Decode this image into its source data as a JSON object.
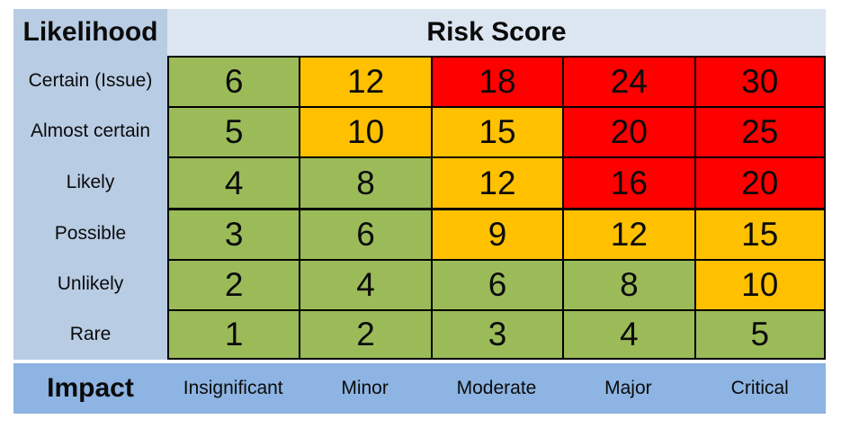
{
  "headers": {
    "likelihood": "Likelihood",
    "risk_score": "Risk Score",
    "impact": "Impact"
  },
  "chart_data": {
    "type": "heatmap",
    "title": "Risk Score",
    "ylabel": "Likelihood",
    "xlabel": "Impact",
    "x_categories": [
      "Insignificant",
      "Minor",
      "Moderate",
      "Major",
      "Critical"
    ],
    "y_categories": [
      "Certain (Issue)",
      "Almost certain",
      "Likely",
      "Possible",
      "Unlikely",
      "Rare"
    ],
    "values": [
      [
        6,
        12,
        18,
        24,
        30
      ],
      [
        5,
        10,
        15,
        20,
        25
      ],
      [
        4,
        8,
        12,
        16,
        20
      ],
      [
        3,
        6,
        9,
        12,
        15
      ],
      [
        2,
        4,
        6,
        8,
        10
      ],
      [
        1,
        2,
        3,
        4,
        5
      ]
    ],
    "cell_colors": [
      [
        "green",
        "yellow",
        "red",
        "red",
        "red"
      ],
      [
        "green",
        "yellow",
        "yellow",
        "red",
        "red"
      ],
      [
        "green",
        "green",
        "yellow",
        "red",
        "red"
      ],
      [
        "green",
        "green",
        "yellow",
        "yellow",
        "yellow"
      ],
      [
        "green",
        "green",
        "green",
        "green",
        "yellow"
      ],
      [
        "green",
        "green",
        "green",
        "green",
        "green"
      ]
    ],
    "color_legend": {
      "green": "#9bbb59",
      "yellow": "#ffc000",
      "red": "#fe0000"
    },
    "legend_position": "none",
    "grid": true
  },
  "palette": {
    "row_label_bg": "#b8cce4",
    "risk_header_bg": "#dce6f1",
    "impact_bar_bg": "#8db4e2",
    "border": "#000000"
  }
}
